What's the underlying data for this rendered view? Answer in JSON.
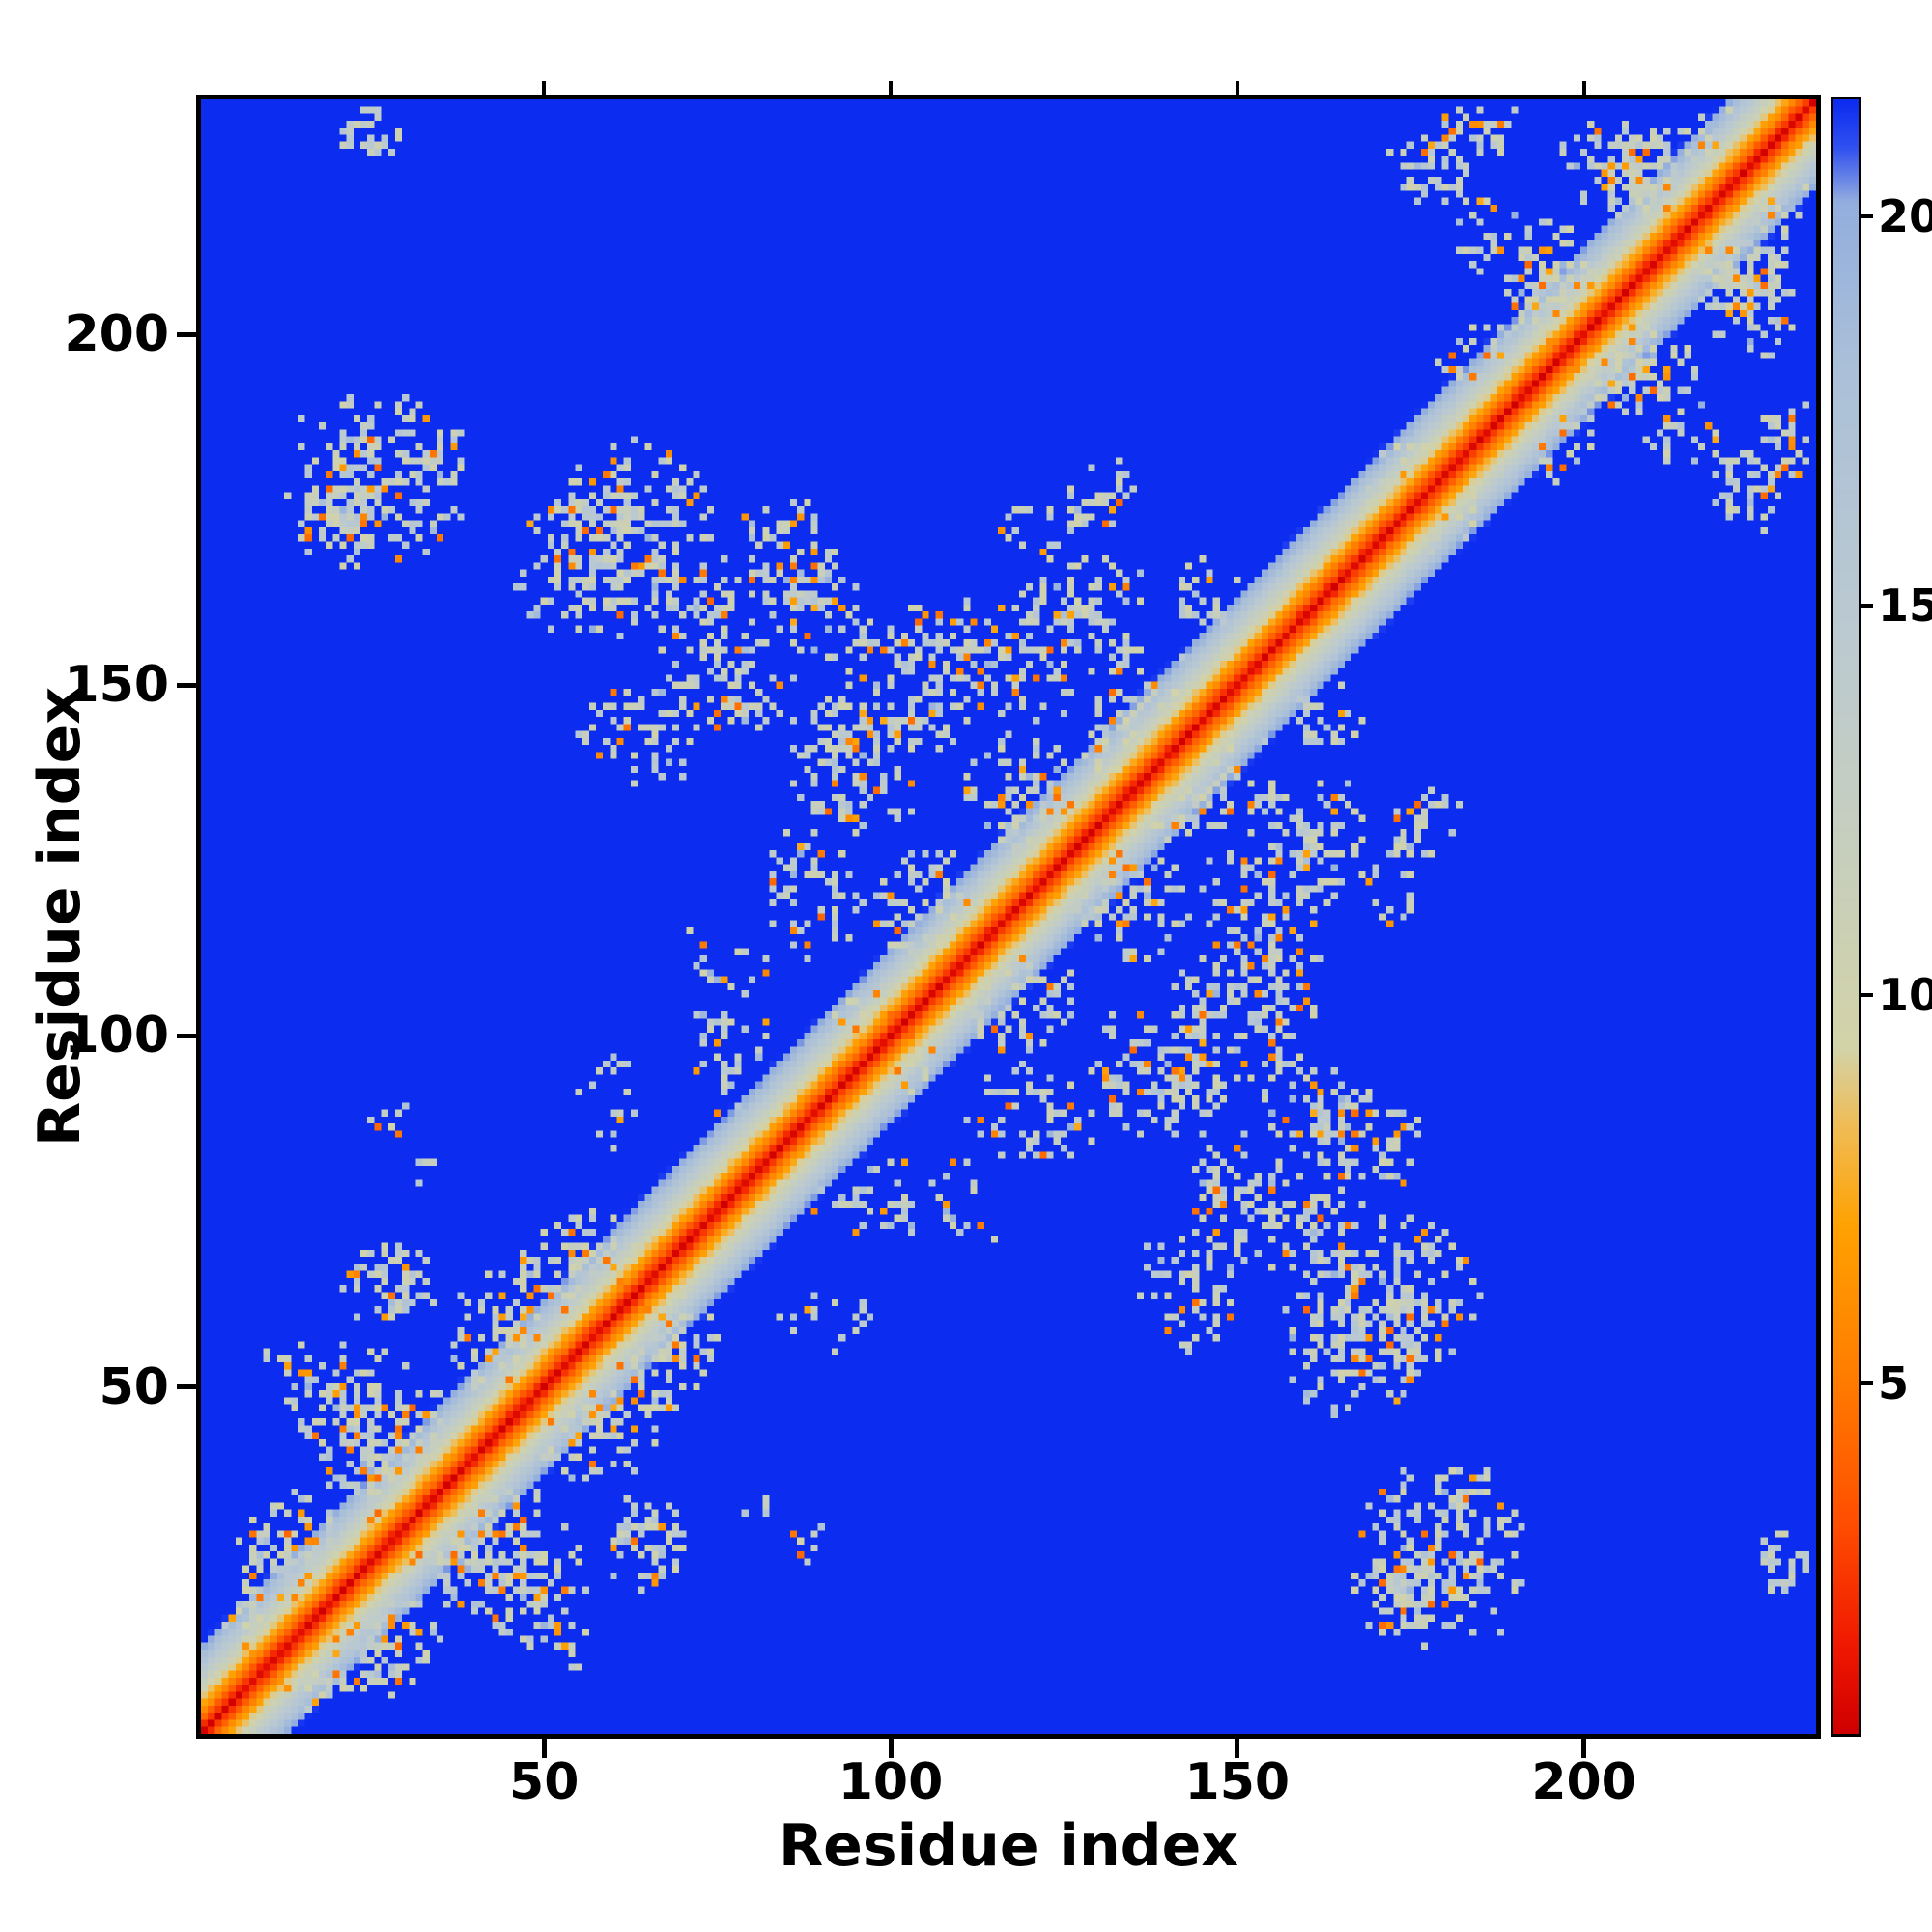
{
  "figure": {
    "xlabel": "Residue index",
    "ylabel": "Residue index",
    "x_tick_labels": [
      "50",
      "100",
      "150",
      "200"
    ],
    "y_tick_labels": [
      "50",
      "100",
      "150",
      "200"
    ],
    "colorbar_tick_labels": [
      "5",
      "10",
      "15",
      "20"
    ],
    "background_color": "#ffffff",
    "frame_color": "#000000"
  },
  "chart_data": {
    "type": "heatmap",
    "title": "",
    "xlabel": "Residue index",
    "ylabel": "Residue index",
    "x_range": [
      1,
      233
    ],
    "y_range": [
      1,
      233
    ],
    "n_residues": 233,
    "x_ticks": [
      50,
      100,
      150,
      200
    ],
    "y_ticks": [
      50,
      100,
      150,
      200
    ],
    "value_range": [
      0.5,
      21.5
    ],
    "colorbar_ticks": [
      5,
      10,
      15,
      20
    ],
    "background_value": 21.5,
    "background_blue": "#0c2cf0",
    "colormap": [
      [
        0.5,
        "#d00000"
      ],
      [
        1.6,
        "#f01800"
      ],
      [
        3.2,
        "#ff4e00"
      ],
      [
        5.0,
        "#ff7b00"
      ],
      [
        7.0,
        "#ffa101"
      ],
      [
        8.3,
        "#f0bc55"
      ],
      [
        9.3,
        "#d3d3a8"
      ],
      [
        11.5,
        "#c8cfba"
      ],
      [
        14.5,
        "#bccad0"
      ],
      [
        18.0,
        "#abc0d8"
      ],
      [
        20.2,
        "#93aede"
      ],
      [
        20.9,
        "#3050f0"
      ],
      [
        21.5,
        "#0c2cf0"
      ]
    ],
    "diagonal_band": {
      "half_width": 13,
      "value_at_d0": 0.8,
      "value_per_step": 1.6
    },
    "orange_speckle_prob": 0.12,
    "pale_blue_speckle_prob": 0.05,
    "seed": 1337,
    "description": "Symmetric residue-residue distance map: red main diagonal with orange flanks fading through pale gray-green contact clusters into a uniform blue (far-distance) background; X-shaped anti-diagonal contact pattern in the core and a secondary X near the C-terminal corner.",
    "contact_clusters": [
      {
        "x": 7,
        "y": 16,
        "rx": 5,
        "ry": 6,
        "density": 0.6
      },
      {
        "x": 14,
        "y": 27,
        "rx": 9,
        "ry": 9,
        "density": 0.65
      },
      {
        "x": 25,
        "y": 45,
        "rx": 11,
        "ry": 12,
        "density": 0.6
      },
      {
        "x": 34,
        "y": 29,
        "rx": 8,
        "ry": 7,
        "density": 0.6
      },
      {
        "x": 45,
        "y": 58,
        "rx": 10,
        "ry": 10,
        "density": 0.6
      },
      {
        "x": 28,
        "y": 64,
        "rx": 7,
        "ry": 7,
        "density": 0.55
      },
      {
        "x": 15,
        "y": 52,
        "rx": 6,
        "ry": 6,
        "density": 0.45
      },
      {
        "x": 55,
        "y": 68,
        "rx": 9,
        "ry": 8,
        "density": 0.6
      },
      {
        "x": 33,
        "y": 82,
        "rx": 3,
        "ry": 5,
        "density": 0.4
      },
      {
        "x": 88,
        "y": 28,
        "rx": 3,
        "ry": 3,
        "density": 0.45
      },
      {
        "x": 26,
        "y": 180,
        "rx": 14,
        "ry": 13,
        "density": 0.55
      },
      {
        "x": 20,
        "y": 172,
        "rx": 6,
        "ry": 6,
        "density": 0.5
      },
      {
        "x": 57,
        "y": 167,
        "rx": 12,
        "ry": 11,
        "density": 0.55
      },
      {
        "x": 72,
        "y": 160,
        "rx": 9,
        "ry": 8,
        "density": 0.5
      },
      {
        "x": 85,
        "y": 168,
        "rx": 9,
        "ry": 9,
        "density": 0.5
      },
      {
        "x": 64,
        "y": 143,
        "rx": 9,
        "ry": 9,
        "density": 0.5
      },
      {
        "x": 80,
        "y": 150,
        "rx": 7,
        "ry": 7,
        "density": 0.45
      },
      {
        "x": 95,
        "y": 136,
        "rx": 9,
        "ry": 9,
        "density": 0.5
      },
      {
        "x": 88,
        "y": 120,
        "rx": 8,
        "ry": 10,
        "density": 0.45
      },
      {
        "x": 76,
        "y": 104,
        "rx": 7,
        "ry": 16,
        "density": 0.35
      },
      {
        "x": 60,
        "y": 92,
        "rx": 5,
        "ry": 8,
        "density": 0.35
      },
      {
        "x": 105,
        "y": 118,
        "rx": 10,
        "ry": 10,
        "density": 0.5
      },
      {
        "x": 100,
        "y": 100,
        "rx": 9,
        "ry": 9,
        "density": 0.6
      },
      {
        "x": 118,
        "y": 135,
        "rx": 9,
        "ry": 9,
        "density": 0.5
      },
      {
        "x": 112,
        "y": 155,
        "rx": 10,
        "ry": 8,
        "density": 0.5
      },
      {
        "x": 125,
        "y": 160,
        "rx": 8,
        "ry": 7,
        "density": 0.45
      },
      {
        "x": 135,
        "y": 150,
        "rx": 9,
        "ry": 9,
        "density": 0.5
      },
      {
        "x": 145,
        "y": 163,
        "rx": 6,
        "ry": 6,
        "density": 0.5
      },
      {
        "x": 130,
        "y": 122,
        "rx": 8,
        "ry": 8,
        "density": 0.45
      },
      {
        "x": 140,
        "y": 135,
        "rx": 8,
        "ry": 8,
        "density": 0.5
      },
      {
        "x": 150,
        "y": 103,
        "rx": 12,
        "ry": 11,
        "density": 0.55
      },
      {
        "x": 160,
        "y": 90,
        "rx": 8,
        "ry": 8,
        "density": 0.5
      },
      {
        "x": 143,
        "y": 92,
        "rx": 7,
        "ry": 7,
        "density": 0.45
      },
      {
        "x": 152,
        "y": 120,
        "rx": 8,
        "ry": 8,
        "density": 0.45
      },
      {
        "x": 163,
        "y": 130,
        "rx": 7,
        "ry": 7,
        "density": 0.4
      },
      {
        "x": 172,
        "y": 63,
        "rx": 13,
        "ry": 12,
        "density": 0.55
      },
      {
        "x": 150,
        "y": 75,
        "rx": 7,
        "ry": 7,
        "density": 0.4
      },
      {
        "x": 120,
        "y": 172,
        "rx": 5,
        "ry": 6,
        "density": 0.35
      },
      {
        "x": 130,
        "y": 176,
        "rx": 6,
        "ry": 8,
        "density": 0.35
      },
      {
        "x": 175,
        "y": 178,
        "rx": 7,
        "ry": 7,
        "density": 0.5
      },
      {
        "x": 186,
        "y": 214,
        "rx": 6,
        "ry": 6,
        "density": 0.5
      },
      {
        "x": 178,
        "y": 224,
        "rx": 7,
        "ry": 6,
        "density": 0.5
      },
      {
        "x": 195,
        "y": 205,
        "rx": 8,
        "ry": 8,
        "density": 0.55
      },
      {
        "x": 205,
        "y": 224,
        "rx": 9,
        "ry": 7,
        "density": 0.6
      },
      {
        "x": 213,
        "y": 218,
        "rx": 6,
        "ry": 6,
        "density": 0.6
      },
      {
        "x": 220,
        "y": 228,
        "rx": 7,
        "ry": 5,
        "density": 0.6
      },
      {
        "x": 196,
        "y": 186,
        "rx": 7,
        "ry": 7,
        "density": 0.5
      },
      {
        "x": 210,
        "y": 196,
        "rx": 7,
        "ry": 8,
        "density": 0.55
      },
      {
        "x": 225,
        "y": 208,
        "rx": 6,
        "ry": 7,
        "density": 0.55
      },
      {
        "x": 229,
        "y": 185,
        "rx": 4,
        "ry": 8,
        "density": 0.45
      },
      {
        "x": 229,
        "y": 25,
        "rx": 4,
        "ry": 5,
        "density": 0.5
      }
    ]
  }
}
